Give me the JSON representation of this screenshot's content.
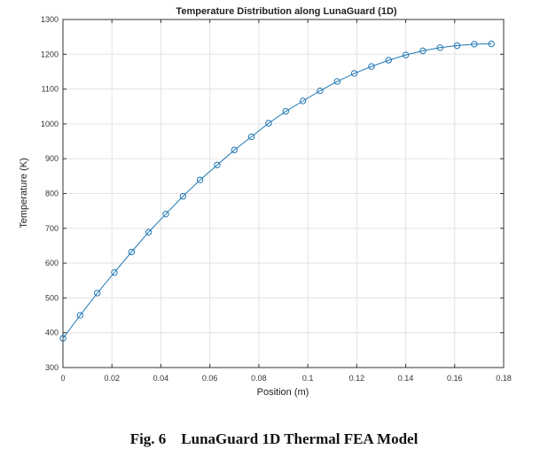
{
  "chart_data": {
    "type": "line",
    "title": "Temperature Distribution along LunaGuard (1D)",
    "xlabel": "Position (m)",
    "ylabel": "Temperature (K)",
    "xlim": [
      0,
      0.18
    ],
    "ylim": [
      300,
      1300
    ],
    "xticks": [
      "0",
      "0.02",
      "0.04",
      "0.06",
      "0.08",
      "0.1",
      "0.12",
      "0.14",
      "0.16",
      "0.18"
    ],
    "yticks": [
      "300",
      "400",
      "500",
      "600",
      "700",
      "800",
      "900",
      "1000",
      "1100",
      "1200",
      "1300"
    ],
    "grid": true,
    "marker": "circle",
    "color": "#1f77b4",
    "series": [
      {
        "x": [
          0,
          0.007,
          0.014,
          0.021,
          0.028,
          0.035,
          0.042,
          0.049,
          0.056,
          0.063,
          0.07,
          0.077,
          0.084,
          0.091,
          0.098,
          0.105,
          0.112,
          0.119,
          0.126,
          0.133,
          0.14,
          0.147,
          0.154,
          0.161,
          0.168,
          0.175
        ],
        "y": [
          384,
          450,
          514,
          573,
          632,
          689,
          741,
          792,
          839,
          882,
          925,
          963,
          1002,
          1036,
          1066,
          1095,
          1122,
          1145,
          1165,
          1183,
          1198,
          1210,
          1219,
          1225,
          1229,
          1230
        ]
      }
    ]
  },
  "caption": "Fig. 6    LunaGuard 1D Thermal FEA Model"
}
